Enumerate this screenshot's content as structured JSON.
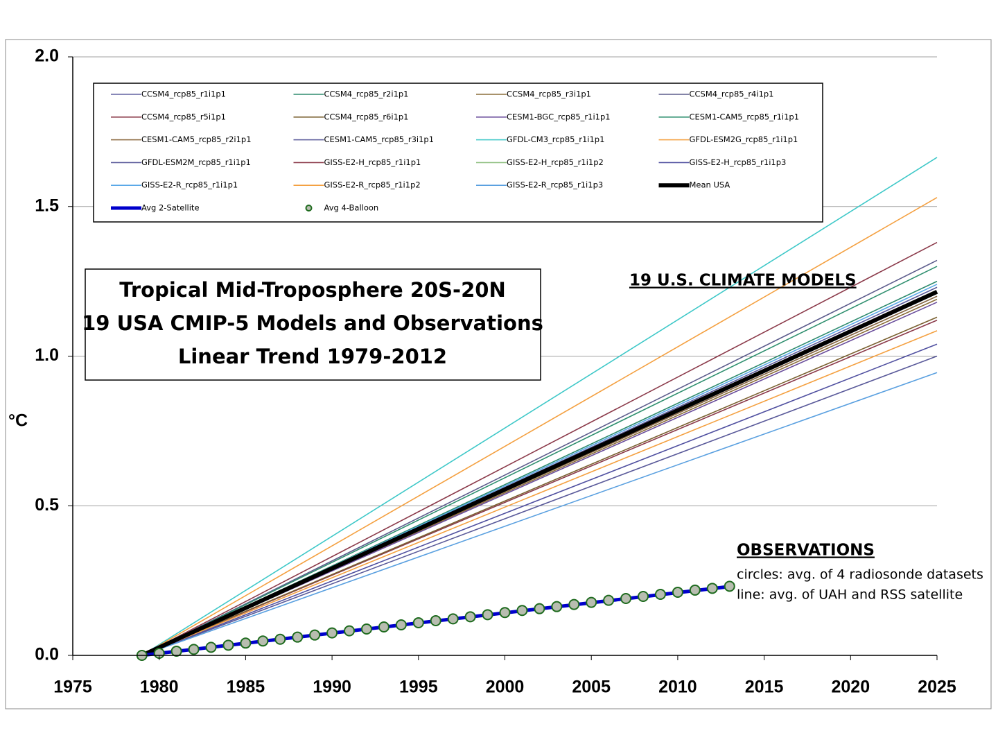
{
  "chart_data": {
    "type": "line",
    "title": [
      "Tropical Mid-Troposphere 20S-20N",
      "19 USA CMIP-5 Models and Observations",
      "Linear Trend 1979-2012"
    ],
    "y_label": "°C",
    "annotations": [
      "19 U.S. CLIMATE MODELS",
      "OBSERVATIONS",
      "circles: avg. of 4 radiosonde datasets",
      "line: avg. of UAH and RSS satellite"
    ],
    "xlim": [
      1975,
      2025
    ],
    "xticks": [
      1975,
      1980,
      1985,
      1990,
      1995,
      2000,
      2005,
      2010,
      2015,
      2020,
      2025
    ],
    "ylim": [
      0,
      2
    ],
    "yticks": [
      {
        "value": 0,
        "label": "0.0"
      },
      0.5,
      {
        "value": 1,
        "label": "1.0"
      },
      1.5,
      {
        "value": 2,
        "label": "2.0"
      }
    ],
    "grid": true,
    "series": [
      {
        "name": "CCSM4_rcp85_r1i1p1",
        "color": "#6060a0",
        "x": [
          1979,
          2025
        ],
        "values": [
          0,
          1.2
        ]
      },
      {
        "name": "CCSM4_rcp85_r2i1p1",
        "color": "#2e8b6e",
        "x": [
          1979,
          2025
        ],
        "values": [
          0,
          1.25
        ]
      },
      {
        "name": "CCSM4_rcp85_r3i1p1",
        "color": "#8b6e3a",
        "x": [
          1979,
          2025
        ],
        "values": [
          0,
          1.19
        ]
      },
      {
        "name": "CCSM4_rcp85_r4i1p1",
        "color": "#5c5c8c",
        "x": [
          1979,
          2025
        ],
        "values": [
          0,
          1.32
        ]
      },
      {
        "name": "CCSM4_rcp85_r5i1p1",
        "color": "#8b3a4a",
        "x": [
          1979,
          2025
        ],
        "values": [
          0,
          1.12
        ]
      },
      {
        "name": "CCSM4_rcp85_r6i1p1",
        "color": "#7a6030",
        "x": [
          1979,
          2025
        ],
        "values": [
          0,
          1.13
        ]
      },
      {
        "name": "CESM1-BGC_rcp85_r1i1p1",
        "color": "#6a4e9c",
        "x": [
          1979,
          2025
        ],
        "values": [
          0,
          1.18
        ]
      },
      {
        "name": "CESM1-CAM5_rcp85_r1i1p1",
        "color": "#2f8f6f",
        "x": [
          1979,
          2025
        ],
        "values": [
          0,
          1.3
        ]
      },
      {
        "name": "CESM1-CAM5_rcp85_r2i1p1",
        "color": "#8b6a40",
        "x": [
          1979,
          2025
        ],
        "values": [
          0,
          1.2
        ]
      },
      {
        "name": "CESM1-CAM5_rcp85_r3i1p1",
        "color": "#5a5a9a",
        "x": [
          1979,
          2025
        ],
        "values": [
          0,
          1.23
        ]
      },
      {
        "name": "GFDL-CM3_rcp85_r1i1p1",
        "color": "#3ec8c8",
        "x": [
          1979,
          2025
        ],
        "values": [
          0,
          1.664
        ]
      },
      {
        "name": "GFDL-ESM2G_rcp85_r1i1p1",
        "color": "#f4a040",
        "x": [
          1979,
          2025
        ],
        "values": [
          0,
          1.53
        ]
      },
      {
        "name": "GFDL-ESM2M_rcp85_r1i1p1",
        "color": "#5a5a9a",
        "x": [
          1979,
          2025
        ],
        "values": [
          0,
          1.0
        ]
      },
      {
        "name": "GISS-E2-H_rcp85_r1i1p1",
        "color": "#8b3a4a",
        "x": [
          1979,
          2025
        ],
        "values": [
          0,
          1.38
        ]
      },
      {
        "name": "GISS-E2-H_rcp85_r1i1p2",
        "color": "#8fbf80",
        "x": [
          1979,
          2025
        ],
        "values": [
          0,
          1.21
        ]
      },
      {
        "name": "GISS-E2-H_rcp85_r1i1p3",
        "color": "#5050a0",
        "x": [
          1979,
          2025
        ],
        "values": [
          0,
          1.04
        ]
      },
      {
        "name": "GISS-E2-R_rcp85_r1i1p1",
        "color": "#5aa8e8",
        "x": [
          1979,
          2025
        ],
        "values": [
          0,
          1.24
        ]
      },
      {
        "name": "GISS-E2-R_rcp85_r1i1p2",
        "color": "#f4a040",
        "x": [
          1979,
          2025
        ],
        "values": [
          0,
          1.085
        ]
      },
      {
        "name": "GISS-E2-R_rcp85_r1i1p3",
        "color": "#5aa0e0",
        "x": [
          1979,
          2025
        ],
        "values": [
          0,
          0.945
        ]
      },
      {
        "name": "Mean USA",
        "color": "#000000",
        "line_width": 6,
        "x": [
          1979,
          2025
        ],
        "values": [
          0,
          1.215
        ]
      },
      {
        "name": "Avg 2-Satellite",
        "color": "#0000cc",
        "line_width": 5,
        "x": [
          1979,
          2013
        ],
        "values": [
          0,
          0.23
        ]
      },
      {
        "name": "Avg 4-Balloon",
        "color": "#1e6b1e",
        "marker": "circle",
        "marker_fill": "#b8bdb0",
        "x": [
          1979,
          1980,
          1981,
          1982,
          1983,
          1984,
          1985,
          1986,
          1987,
          1988,
          1989,
          1990,
          1991,
          1992,
          1993,
          1994,
          1995,
          1996,
          1997,
          1998,
          1999,
          2000,
          2001,
          2002,
          2003,
          2004,
          2005,
          2006,
          2007,
          2008,
          2009,
          2010,
          2011,
          2012,
          2013
        ],
        "values": [
          0,
          0.007,
          0.014,
          0.02,
          0.027,
          0.034,
          0.041,
          0.048,
          0.054,
          0.061,
          0.068,
          0.075,
          0.082,
          0.088,
          0.095,
          0.102,
          0.109,
          0.116,
          0.122,
          0.129,
          0.136,
          0.143,
          0.15,
          0.156,
          0.163,
          0.17,
          0.177,
          0.184,
          0.19,
          0.197,
          0.204,
          0.211,
          0.218,
          0.224,
          0.231
        ]
      }
    ]
  }
}
